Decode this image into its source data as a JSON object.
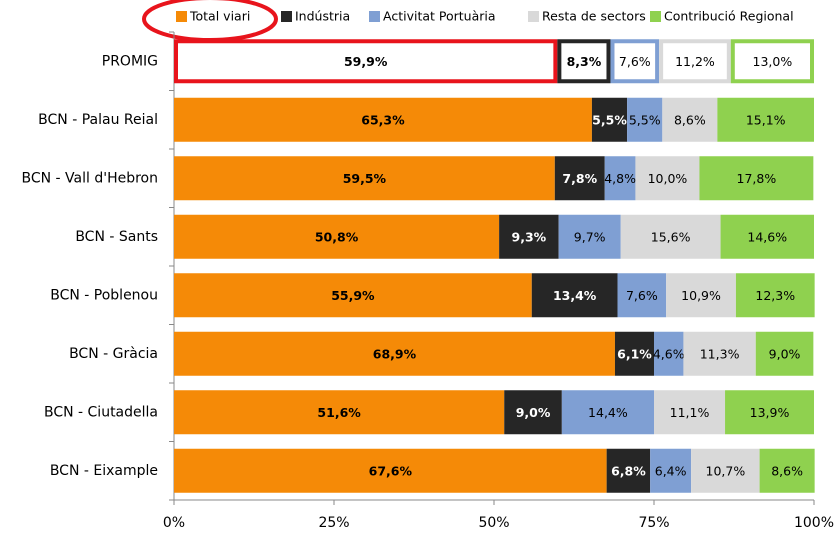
{
  "chart_data": {
    "type": "stacked_bar_horizontal",
    "categories": [
      "PROMIG",
      "BCN - Palau Reial",
      "BCN - Vall d'Hebron",
      "BCN - Sants",
      "BCN - Poblenou",
      "BCN - Gràcia",
      "BCN - Ciutadella",
      "BCN - Eixample"
    ],
    "series": [
      {
        "name": "Total viari",
        "color": "#f58a07",
        "label_color": "#000000",
        "label_bold": true,
        "values": [
          59.9,
          65.3,
          59.5,
          50.8,
          55.9,
          68.9,
          51.6,
          67.6
        ],
        "value_labels": [
          "59,9%",
          "65,3%",
          "59,5%",
          "50,8%",
          "55,9%",
          "68,9%",
          "51,6%",
          "67,6%"
        ]
      },
      {
        "name": "Indústria",
        "color": "#262626",
        "label_color": "#ffffff",
        "label_bold": true,
        "values": [
          8.3,
          5.5,
          7.8,
          9.3,
          13.4,
          6.1,
          9.0,
          6.8
        ],
        "value_labels": [
          "8,3%",
          "5,5%",
          "7,8%",
          "9,3%",
          "13,4%",
          "6,1%",
          "9,0%",
          "6,8%"
        ]
      },
      {
        "name": "Activitat Portuària",
        "color": "#7f9fd3",
        "label_color": "#000000",
        "label_bold": false,
        "values": [
          7.6,
          5.5,
          4.8,
          9.7,
          7.6,
          4.6,
          14.4,
          6.4
        ],
        "value_labels": [
          "7,6%",
          "5,5%",
          "4,8%",
          "9,7%",
          "7,6%",
          "4,6%",
          "14,4%",
          "6,4%"
        ]
      },
      {
        "name": "Resta de sectors",
        "color": "#d9d9d9",
        "label_color": "#000000",
        "label_bold": false,
        "values": [
          11.2,
          8.6,
          10.0,
          15.6,
          10.9,
          11.3,
          11.1,
          10.7
        ],
        "value_labels": [
          "11,2%",
          "8,6%",
          "10,0%",
          "15,6%",
          "10,9%",
          "11,3%",
          "11,1%",
          "10,7%"
        ]
      },
      {
        "name": "Contribució Regional",
        "color": "#8fd14f",
        "label_color": "#000000",
        "label_bold": false,
        "values": [
          13.0,
          15.1,
          17.8,
          14.6,
          12.3,
          9.0,
          13.9,
          8.6
        ],
        "value_labels": [
          "13,0%",
          "15,1%",
          "17,8%",
          "14,6%",
          "12,3%",
          "9,0%",
          "13,9%",
          "8,6%"
        ]
      }
    ],
    "xlim": [
      0,
      100
    ],
    "xticks": [
      {
        "value": 0,
        "label": "0%"
      },
      {
        "value": 25,
        "label": "25%"
      },
      {
        "value": 50,
        "label": "50%"
      },
      {
        "value": 75,
        "label": "75%"
      },
      {
        "value": 100,
        "label": "100%"
      }
    ],
    "legend": "top",
    "highlight": {
      "category_index": 0,
      "style": "outline",
      "first_border_color": "#e8141c"
    }
  }
}
